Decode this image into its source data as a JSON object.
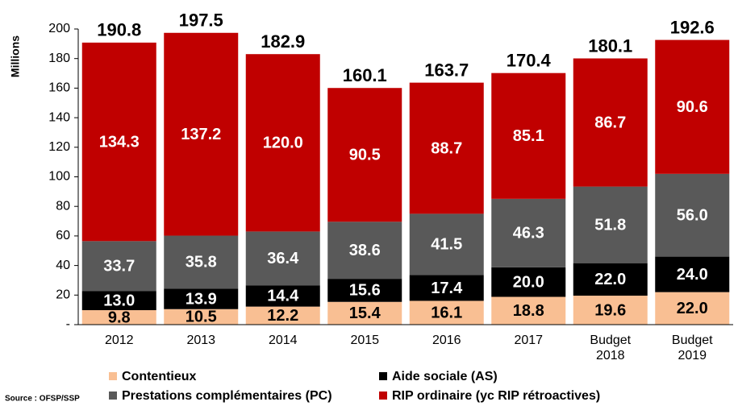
{
  "chart_data": {
    "type": "stacked_bar",
    "y_label": "Millions",
    "source": "Source : OFSP/SSP",
    "categories": [
      "2012",
      "2013",
      "2014",
      "2015",
      "2016",
      "2017",
      "Budget 2018",
      "Budget 2019"
    ],
    "series": [
      {
        "name": "Contentieux",
        "color": "#f9bf93",
        "label_color": "#000000",
        "values": [
          9.8,
          10.5,
          12.2,
          15.4,
          16.1,
          18.8,
          19.6,
          22.0
        ],
        "value_labels": [
          "9.8",
          "10.5",
          "12.2",
          "15.4",
          "16.1",
          "18.8",
          "19.6",
          "22.0"
        ]
      },
      {
        "name": "Aide sociale (AS)",
        "color": "#000000",
        "label_color": "#ffffff",
        "values": [
          13.0,
          13.9,
          14.4,
          15.6,
          17.4,
          20.0,
          22.0,
          24.0
        ],
        "value_labels": [
          "13.0",
          "13.9",
          "14.4",
          "15.6",
          "17.4",
          "20.0",
          "22.0",
          "24.0"
        ]
      },
      {
        "name": "Prestations complémentaires (PC)",
        "color": "#595959",
        "label_color": "#ffffff",
        "values": [
          33.7,
          35.8,
          36.4,
          38.6,
          41.5,
          46.3,
          51.8,
          56.0
        ],
        "value_labels": [
          "33.7",
          "35.8",
          "36.4",
          "38.6",
          "41.5",
          "46.3",
          "51.8",
          "56.0"
        ]
      },
      {
        "name": "RIP ordinaire (yc RIP rétroactives)",
        "color": "#c00000",
        "label_color": "#ffffff",
        "values": [
          134.3,
          137.2,
          120.0,
          90.5,
          88.7,
          85.1,
          86.7,
          90.6
        ],
        "value_labels": [
          "134.3",
          "137.2",
          "120.0",
          "90.5",
          "88.7",
          "85.1",
          "86.7",
          "90.6"
        ]
      }
    ],
    "totals": [
      190.8,
      197.5,
      182.9,
      160.1,
      163.7,
      170.4,
      180.1,
      192.6
    ],
    "ylim": [
      0,
      200
    ],
    "yticks": [
      {
        "value": 0,
        "label": "-"
      },
      20,
      40,
      60,
      80,
      100,
      120,
      140,
      160,
      180,
      200
    ],
    "grid": false
  }
}
